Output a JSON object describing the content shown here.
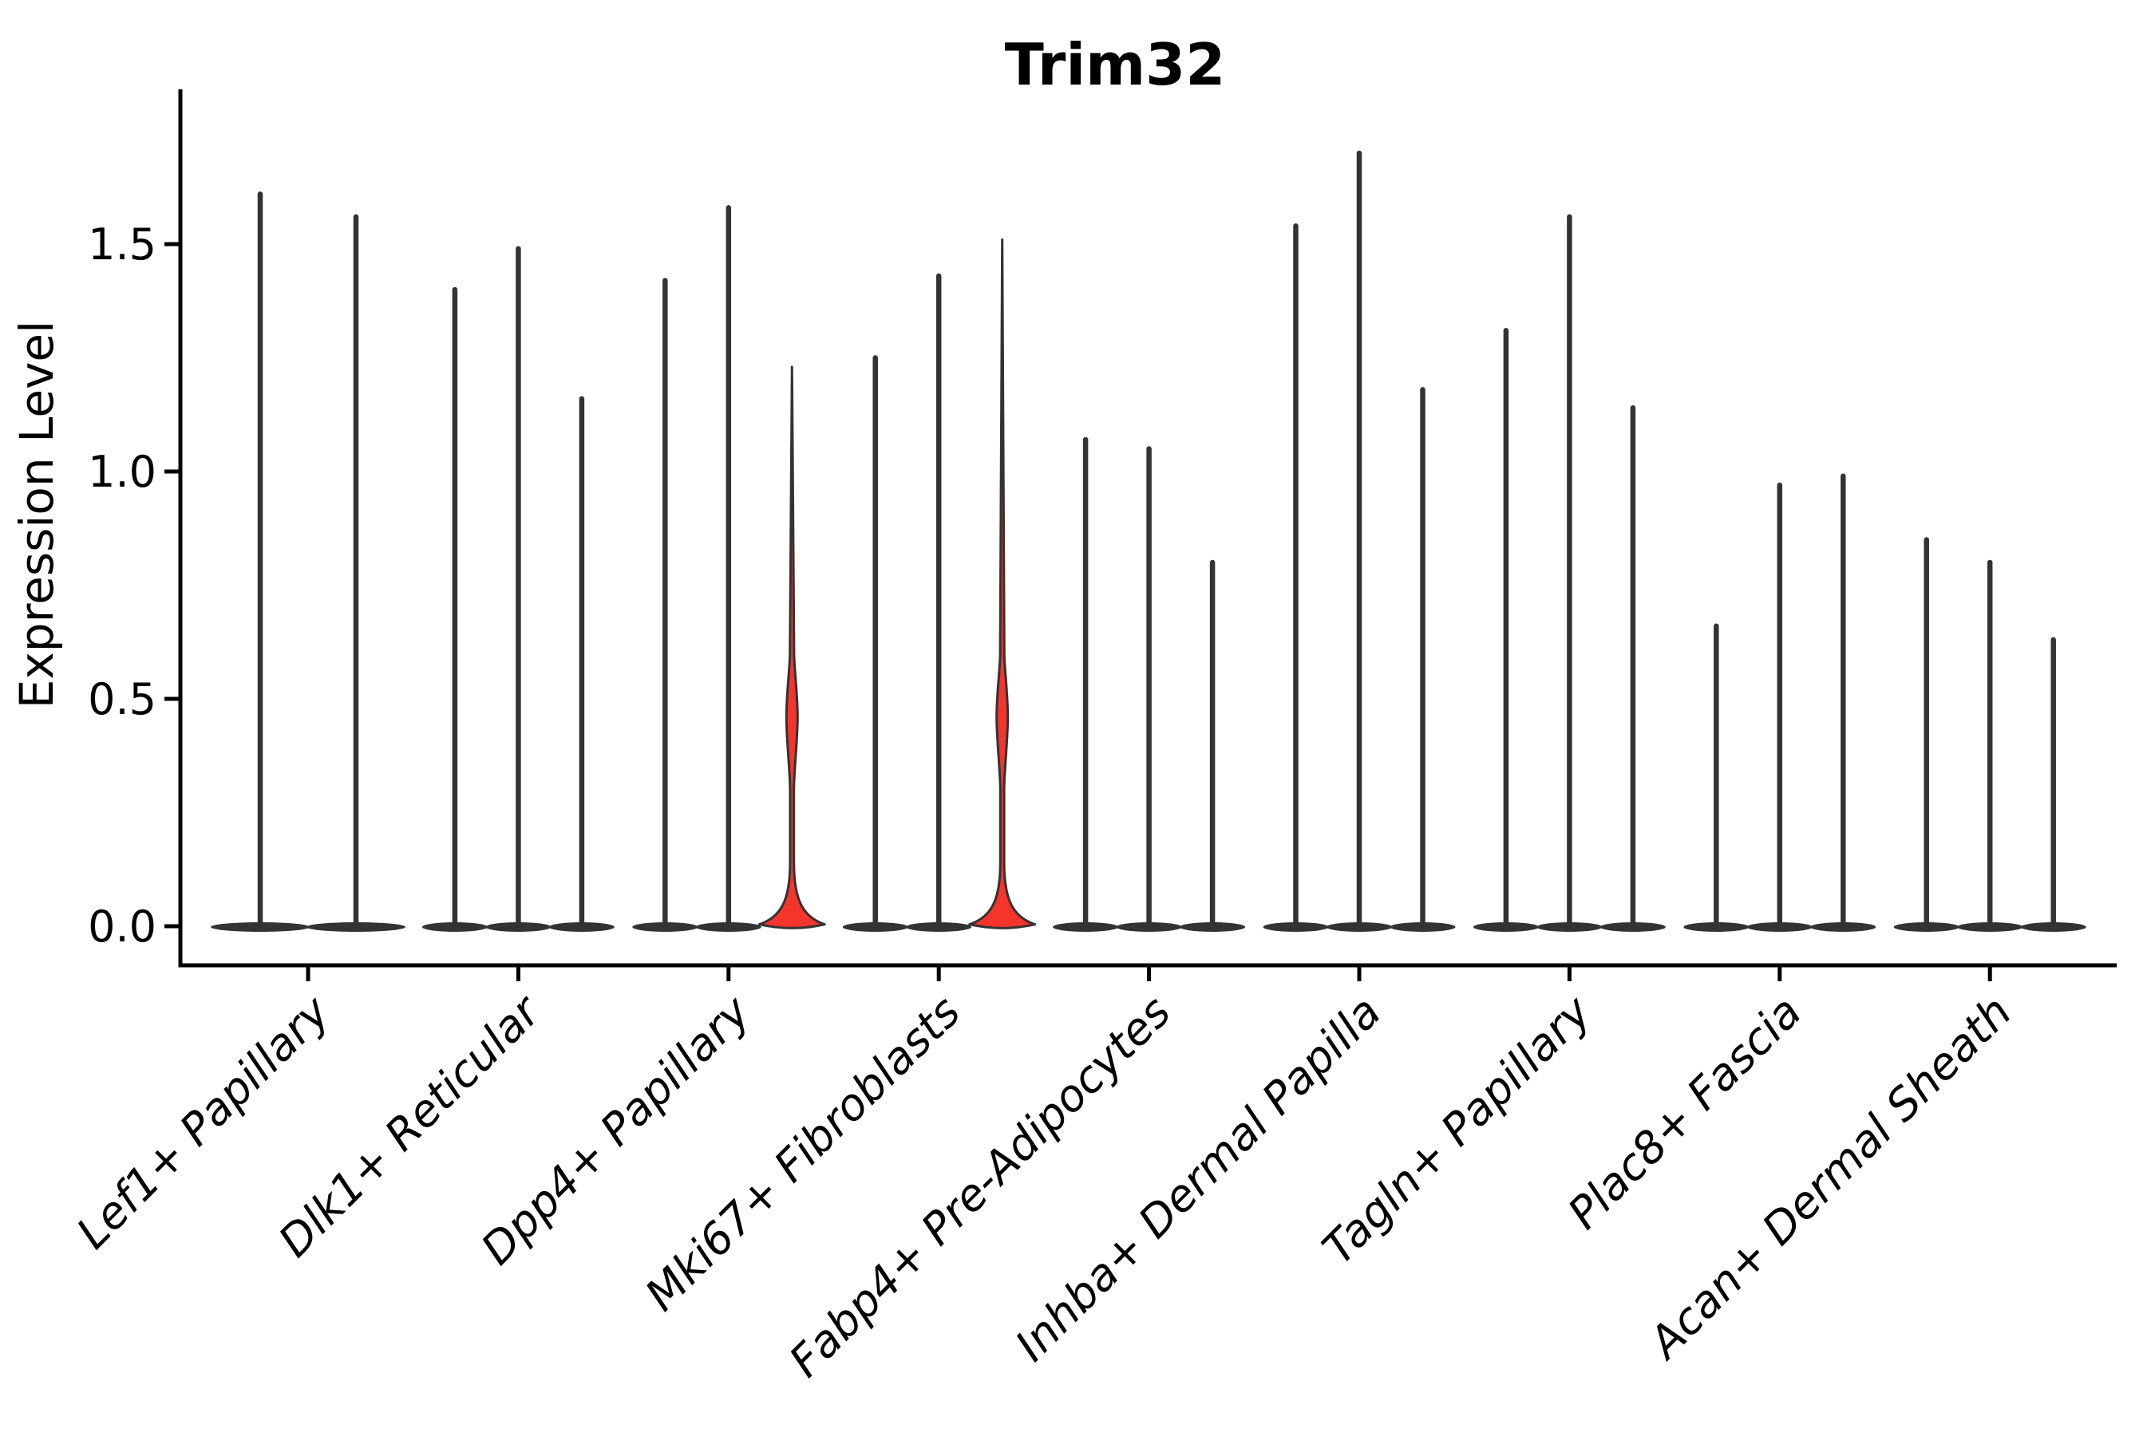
{
  "title": "Trim32",
  "colors": {
    "highlight_fill": "#f5342c",
    "violin_color": "#333333",
    "axis_color": "#000000",
    "background": "#ffffff"
  },
  "chart_data": {
    "type": "violin",
    "title": "Trim32",
    "xlabel": "",
    "ylabel": "Expression Level",
    "ylim": [
      -0.04,
      1.84
    ],
    "yticks": [
      0.0,
      0.5,
      1.0,
      1.5
    ],
    "ytick_labels": [
      "0.0",
      "0.5",
      "1.0",
      "1.5"
    ],
    "grid": false,
    "legend": "none",
    "description": "Stacked violin plot of Trim32 expression per fibroblast cell-type cluster; most cells express 0 (flat bases with thin max-value spikes). Two violins (3rd of Dpp4+ Papillary and 3rd of Mki67+ Fibroblasts) are highlighted red with a density bulge around 0.3-0.6.",
    "categories": [
      "Lef1+ Papillary",
      "Dlk1+ Reticular",
      "Dpp4+ Papillary",
      "Mki67+ Fibroblasts",
      "Fabp4+ Pre-Adipocytes",
      "Inhba+ Dermal Papilla",
      "Tagln+ Papillary",
      "Plac8+ Fascia",
      "Acan+ Dermal Sheath"
    ],
    "groups": [
      {
        "label": "Lef1+ Papillary",
        "violins": [
          {
            "max": 1.61,
            "highlight": false
          },
          {
            "max": 1.56,
            "highlight": false
          }
        ]
      },
      {
        "label": "Dlk1+ Reticular",
        "violins": [
          {
            "max": 1.4,
            "highlight": false
          },
          {
            "max": 1.49,
            "highlight": false
          },
          {
            "max": 1.16,
            "highlight": false
          }
        ]
      },
      {
        "label": "Dpp4+ Papillary",
        "violins": [
          {
            "max": 1.42,
            "highlight": false
          },
          {
            "max": 1.58,
            "highlight": false
          },
          {
            "max": 1.23,
            "highlight": true,
            "bulge_low": 0.3,
            "bulge_peak": 0.46,
            "bulge_high": 0.6,
            "base_top": 0.14
          }
        ]
      },
      {
        "label": "Mki67+ Fibroblasts",
        "violins": [
          {
            "max": 1.25,
            "highlight": false
          },
          {
            "max": 1.43,
            "highlight": false
          },
          {
            "max": 1.51,
            "highlight": true,
            "bulge_low": 0.3,
            "bulge_peak": 0.46,
            "bulge_high": 0.6,
            "base_top": 0.14
          }
        ]
      },
      {
        "label": "Fabp4+ Pre-Adipocytes",
        "violins": [
          {
            "max": 1.07,
            "highlight": false
          },
          {
            "max": 1.05,
            "highlight": false
          },
          {
            "max": 0.8,
            "highlight": false
          }
        ]
      },
      {
        "label": "Inhba+ Dermal Papilla",
        "violins": [
          {
            "max": 1.54,
            "highlight": false
          },
          {
            "max": 1.7,
            "highlight": false
          },
          {
            "max": 1.18,
            "highlight": false
          }
        ]
      },
      {
        "label": "Tagln+ Papillary",
        "violins": [
          {
            "max": 1.31,
            "highlight": false
          },
          {
            "max": 1.56,
            "highlight": false
          },
          {
            "max": 1.14,
            "highlight": false
          }
        ]
      },
      {
        "label": "Plac8+ Fascia",
        "violins": [
          {
            "max": 0.66,
            "highlight": false
          },
          {
            "max": 0.97,
            "highlight": false
          },
          {
            "max": 0.99,
            "highlight": false
          }
        ]
      },
      {
        "label": "Acan+ Dermal Sheath",
        "violins": [
          {
            "max": 0.85,
            "highlight": false
          },
          {
            "max": 0.8,
            "highlight": false
          },
          {
            "max": 0.63,
            "highlight": false
          }
        ]
      }
    ]
  }
}
